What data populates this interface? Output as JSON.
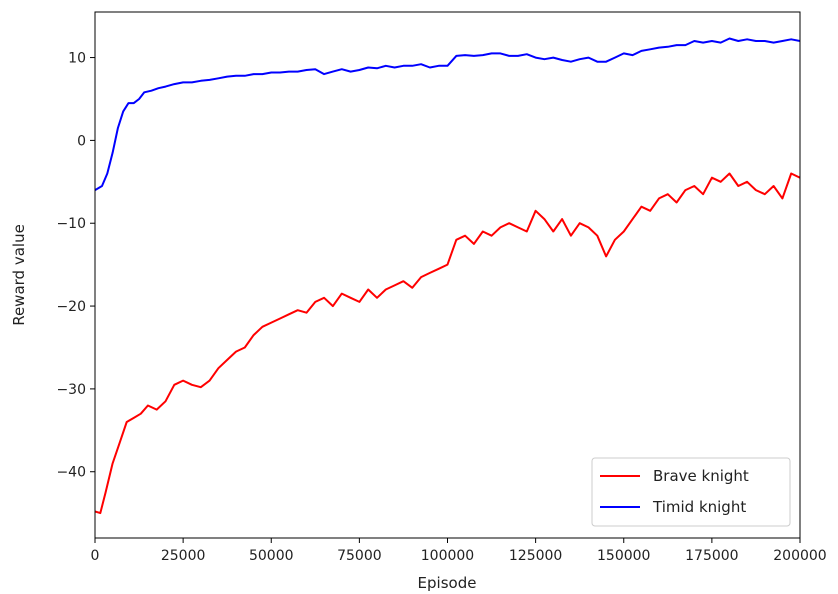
{
  "chart_data": {
    "type": "line",
    "title": "",
    "xlabel": "Episode",
    "ylabel": "Reward value",
    "xlim": [
      0,
      200000
    ],
    "ylim": [
      -48,
      15.5
    ],
    "xticks": [
      0,
      25000,
      50000,
      75000,
      100000,
      125000,
      150000,
      175000,
      200000
    ],
    "xtick_labels": [
      "0",
      "25000",
      "50000",
      "75000",
      "100000",
      "125000",
      "150000",
      "175000",
      "200000"
    ],
    "yticks": [
      -40,
      -30,
      -20,
      -10,
      0,
      10
    ],
    "ytick_labels": [
      "−40",
      "−30",
      "−20",
      "−10",
      "0",
      "10"
    ],
    "grid": false,
    "legend_position": "bottom-right",
    "series": [
      {
        "name": "Brave knight",
        "color": "#ff0000",
        "x": [
          0,
          1500,
          3000,
          5000,
          7000,
          9000,
          11000,
          13000,
          15000,
          17500,
          20000,
          22500,
          25000,
          27500,
          30000,
          32500,
          35000,
          37500,
          40000,
          42500,
          45000,
          47500,
          50000,
          52500,
          55000,
          57500,
          60000,
          62500,
          65000,
          67500,
          70000,
          72500,
          75000,
          77500,
          80000,
          82500,
          85000,
          87500,
          90000,
          92500,
          95000,
          97500,
          100000,
          102500,
          105000,
          107500,
          110000,
          112500,
          115000,
          117500,
          120000,
          122500,
          125000,
          127500,
          130000,
          132500,
          135000,
          137500,
          140000,
          142500,
          145000,
          147500,
          150000,
          152500,
          155000,
          157500,
          160000,
          162500,
          165000,
          167500,
          170000,
          172500,
          175000,
          177500,
          180000,
          182500,
          185000,
          187500,
          190000,
          192500,
          195000,
          197500,
          200000
        ],
        "values": [
          -44.8,
          -45.0,
          -42.5,
          -39.0,
          -36.5,
          -34.0,
          -33.5,
          -33.0,
          -32.0,
          -32.5,
          -31.5,
          -29.5,
          -29.0,
          -29.5,
          -29.8,
          -29.0,
          -27.5,
          -26.5,
          -25.5,
          -25.0,
          -23.5,
          -22.5,
          -22.0,
          -21.5,
          -21.0,
          -20.5,
          -20.8,
          -19.5,
          -19.0,
          -20.0,
          -18.5,
          -19.0,
          -19.5,
          -18.0,
          -19.0,
          -18.0,
          -17.5,
          -17.0,
          -17.8,
          -16.5,
          -16.0,
          -15.5,
          -15.0,
          -12.0,
          -11.5,
          -12.5,
          -11.0,
          -11.5,
          -10.5,
          -10.0,
          -10.5,
          -11.0,
          -8.5,
          -9.5,
          -11.0,
          -9.5,
          -11.5,
          -10.0,
          -10.5,
          -11.5,
          -14.0,
          -12.0,
          -11.0,
          -9.5,
          -8.0,
          -8.5,
          -7.0,
          -6.5,
          -7.5,
          -6.0,
          -5.5,
          -6.5,
          -4.5,
          -5.0,
          -4.0,
          -5.5,
          -5.0,
          -6.0,
          -6.5,
          -5.5,
          -7.0,
          -4.0,
          -4.5
        ]
      },
      {
        "name": "Timid knight",
        "color": "#0000ff",
        "x": [
          0,
          2000,
          3500,
          5000,
          6500,
          8000,
          9500,
          11000,
          12500,
          14000,
          16000,
          18000,
          20000,
          22500,
          25000,
          27500,
          30000,
          32500,
          35000,
          37500,
          40000,
          42500,
          45000,
          47500,
          50000,
          52500,
          55000,
          57500,
          60000,
          62500,
          65000,
          67500,
          70000,
          72500,
          75000,
          77500,
          80000,
          82500,
          85000,
          87500,
          90000,
          92500,
          95000,
          97500,
          100000,
          102500,
          105000,
          107500,
          110000,
          112500,
          115000,
          117500,
          120000,
          122500,
          125000,
          127500,
          130000,
          132500,
          135000,
          137500,
          140000,
          142500,
          145000,
          147500,
          150000,
          152500,
          155000,
          157500,
          160000,
          162500,
          165000,
          167500,
          170000,
          172500,
          175000,
          177500,
          180000,
          182500,
          185000,
          187500,
          190000,
          192500,
          195000,
          197500,
          200000
        ],
        "values": [
          -6.0,
          -5.5,
          -4.0,
          -1.5,
          1.5,
          3.5,
          4.5,
          4.5,
          5.0,
          5.8,
          6.0,
          6.3,
          6.5,
          6.8,
          7.0,
          7.0,
          7.2,
          7.3,
          7.5,
          7.7,
          7.8,
          7.8,
          8.0,
          8.0,
          8.2,
          8.2,
          8.3,
          8.3,
          8.5,
          8.6,
          8.0,
          8.3,
          8.6,
          8.3,
          8.5,
          8.8,
          8.7,
          9.0,
          8.8,
          9.0,
          9.0,
          9.2,
          8.8,
          9.0,
          9.0,
          10.2,
          10.3,
          10.2,
          10.3,
          10.5,
          10.5,
          10.2,
          10.2,
          10.4,
          10.0,
          9.8,
          10.0,
          9.7,
          9.5,
          9.8,
          10.0,
          9.5,
          9.5,
          10.0,
          10.5,
          10.3,
          10.8,
          11.0,
          11.2,
          11.3,
          11.5,
          11.5,
          12.0,
          11.8,
          12.0,
          11.8,
          12.3,
          12.0,
          12.2,
          12.0,
          12.0,
          11.8,
          12.0,
          12.2,
          12.0
        ]
      }
    ]
  }
}
